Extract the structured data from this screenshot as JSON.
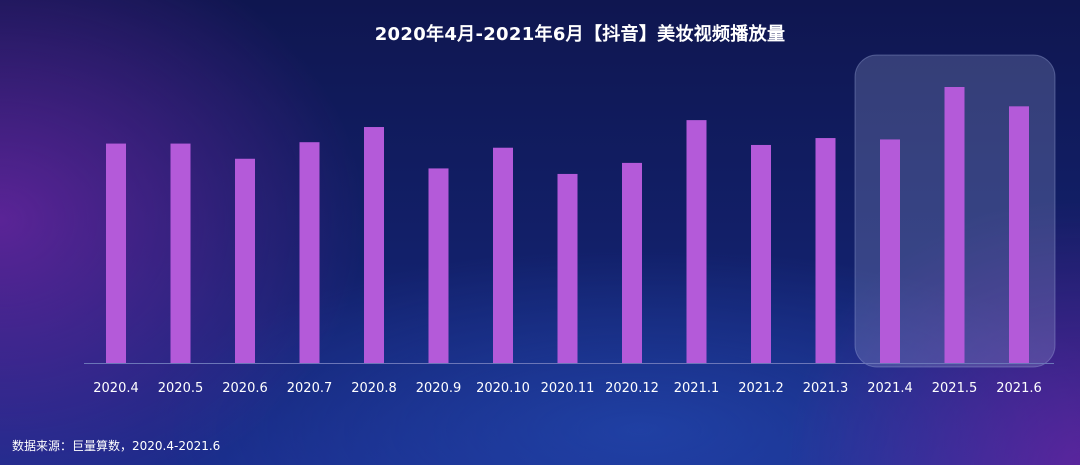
{
  "title": "2020年4月-2021年6月【抖音】美妆视频播放量",
  "source": "数据来源：巨量算数，2020.4-2021.6",
  "colors": {
    "bar": "#b45ad9",
    "axis": "#6b76b8",
    "highlight_fill": "rgba(150,160,210,0.28)",
    "highlight_stroke": "rgba(170,180,230,0.35)"
  },
  "chart_data": {
    "type": "bar",
    "categories": [
      "2020.4",
      "2020.5",
      "2020.6",
      "2020.7",
      "2020.8",
      "2020.9",
      "2020.10",
      "2020.11",
      "2020.12",
      "2021.1",
      "2021.2",
      "2021.3",
      "2021.4",
      "2021.5",
      "2021.6"
    ],
    "values": [
      79.5,
      79.5,
      74,
      80,
      85.5,
      70.5,
      78,
      68.5,
      72.5,
      88,
      79,
      81.5,
      81,
      100,
      93
    ],
    "ylim": [
      0,
      110
    ],
    "highlight_categories": [
      "2021.4",
      "2021.5",
      "2021.6"
    ],
    "grid": false
  }
}
